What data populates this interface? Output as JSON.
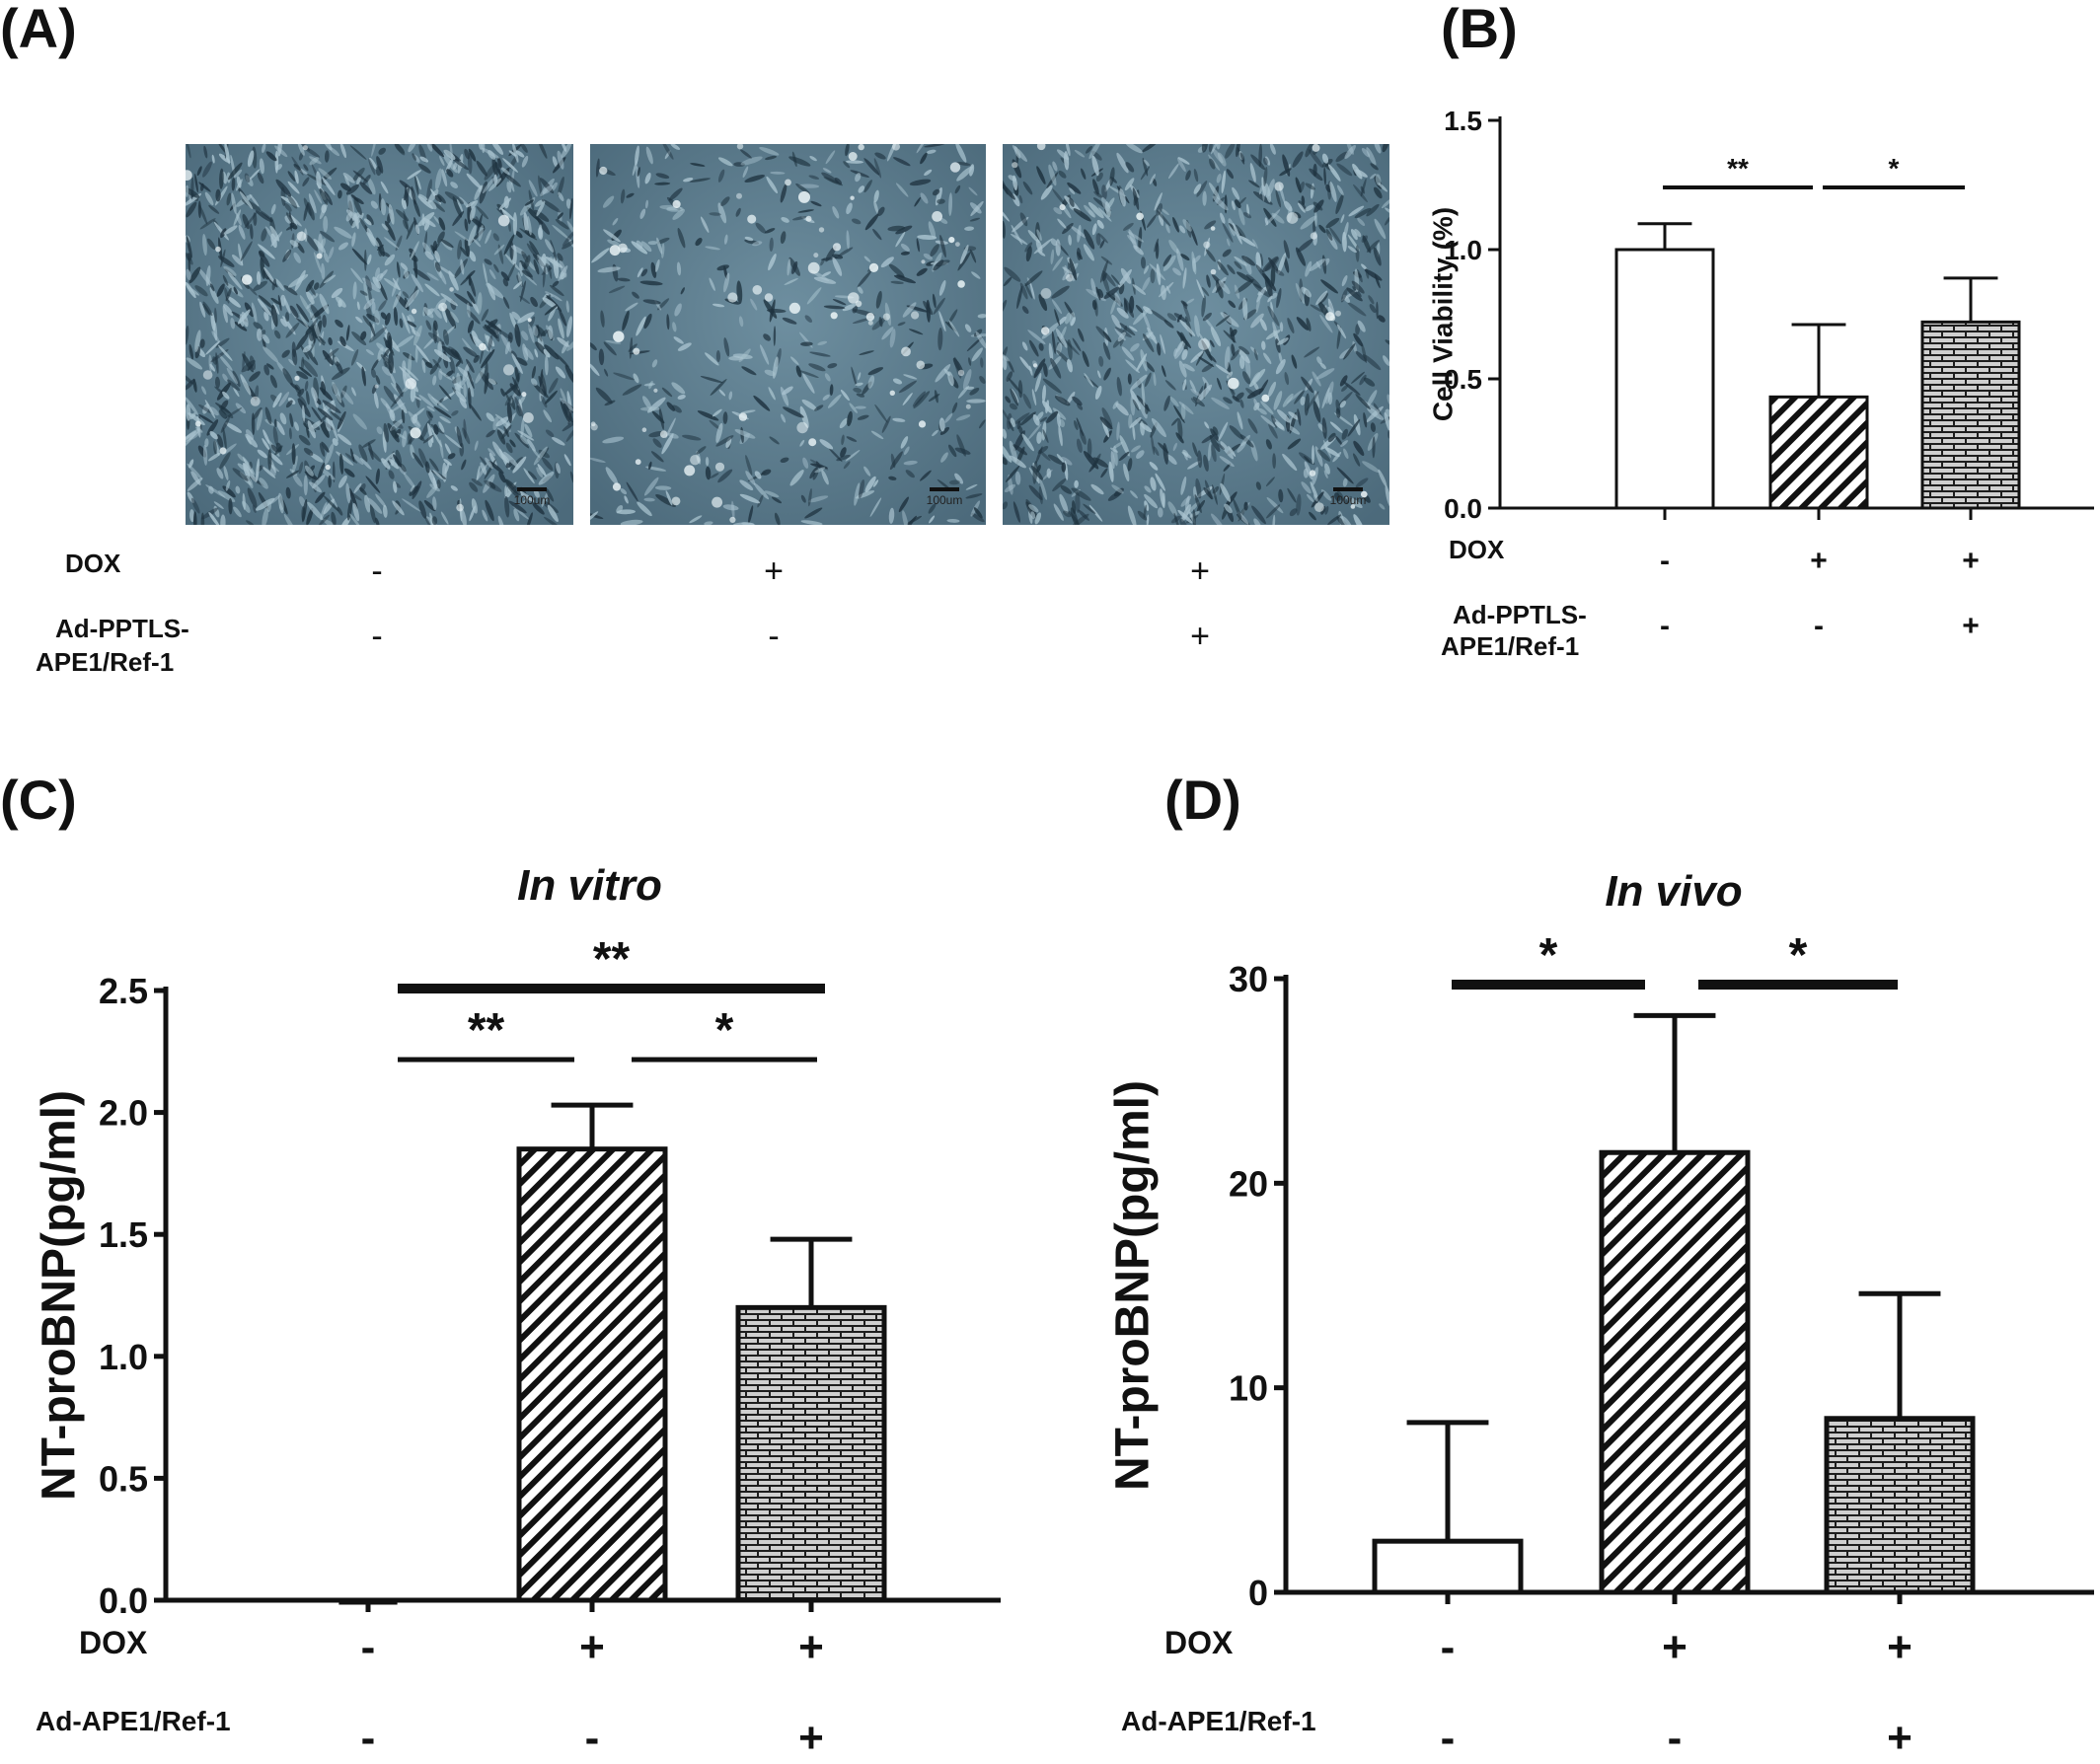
{
  "panels": {
    "a": {
      "label": "(A)"
    },
    "b": {
      "label": "(B)"
    },
    "c": {
      "label": "(C)"
    },
    "d": {
      "label": "(D)"
    }
  },
  "micrographs": [
    {
      "scale_label": "100um",
      "density": 0.95
    },
    {
      "scale_label": "100um",
      "density": 0.35
    },
    {
      "scale_label": "100um",
      "density": 0.7
    }
  ],
  "panel_a_conditions": {
    "row1_label": "DOX",
    "row1": [
      "-",
      "+",
      "+"
    ],
    "row2_label_1": "Ad-PPTLS-",
    "row2_label_2": "APE1/Ref-1",
    "row2": [
      "-",
      "-",
      "+"
    ]
  },
  "chart_data": [
    {
      "panel": "B",
      "type": "bar",
      "ylabel": "Cell Viability (%)",
      "ylim": [
        0,
        1.5
      ],
      "yticks": [
        "0.0",
        "0.5",
        "1.0",
        "1.5"
      ],
      "values": [
        1.0,
        0.43,
        0.72
      ],
      "errors": [
        0.1,
        0.28,
        0.17
      ],
      "patterns": [
        "white",
        "hatch",
        "brick"
      ],
      "significance": [
        {
          "from": 0,
          "to": 1,
          "label": "**"
        },
        {
          "from": 1,
          "to": 2,
          "label": "*"
        }
      ],
      "conditions": {
        "row1_label": "DOX",
        "row1": [
          "-",
          "+",
          "+"
        ],
        "row2_label_1": "Ad-PPTLS-",
        "row2_label_2": "APE1/Ref-1",
        "row2": [
          "-",
          "-",
          "+"
        ]
      }
    },
    {
      "panel": "C",
      "type": "bar",
      "title": "In vitro",
      "ylabel": "NT-proBNP(pg/ml)",
      "ylim": [
        0,
        2.5
      ],
      "yticks": [
        "0.0",
        "0.5",
        "1.0",
        "1.5",
        "2.0",
        "2.5"
      ],
      "values": [
        0.0,
        1.85,
        1.2
      ],
      "errors": [
        0,
        0.18,
        0.28
      ],
      "patterns": [
        "white",
        "hatch",
        "brick"
      ],
      "significance": [
        {
          "from": 0,
          "to": 2,
          "label": "**",
          "level": 2
        },
        {
          "from": 0,
          "to": 1,
          "label": "**",
          "level": 1
        },
        {
          "from": 1,
          "to": 2,
          "label": "*",
          "level": 1
        }
      ],
      "conditions": {
        "row1_label": "DOX",
        "row1": [
          "-",
          "+",
          "+"
        ],
        "row2_label": "Ad-APE1/Ref-1",
        "row2": [
          "-",
          "-",
          "+"
        ]
      }
    },
    {
      "panel": "D",
      "type": "bar",
      "title": "In vivo",
      "ylabel": "NT-proBNP(pg/ml)",
      "ylim": [
        0,
        30
      ],
      "yticks": [
        "0",
        "10",
        "20",
        "30"
      ],
      "values": [
        2.5,
        21.5,
        8.5
      ],
      "errors": [
        5.8,
        6.7,
        6.1
      ],
      "patterns": [
        "white",
        "hatch",
        "brick"
      ],
      "significance": [
        {
          "from": 0,
          "to": 1,
          "label": "*"
        },
        {
          "from": 1,
          "to": 2,
          "label": "*"
        }
      ],
      "conditions": {
        "row1_label": "DOX",
        "row1": [
          "-",
          "+",
          "+"
        ],
        "row2_label": "Ad-APE1/Ref-1",
        "row2": [
          "-",
          "-",
          "+"
        ]
      }
    }
  ]
}
